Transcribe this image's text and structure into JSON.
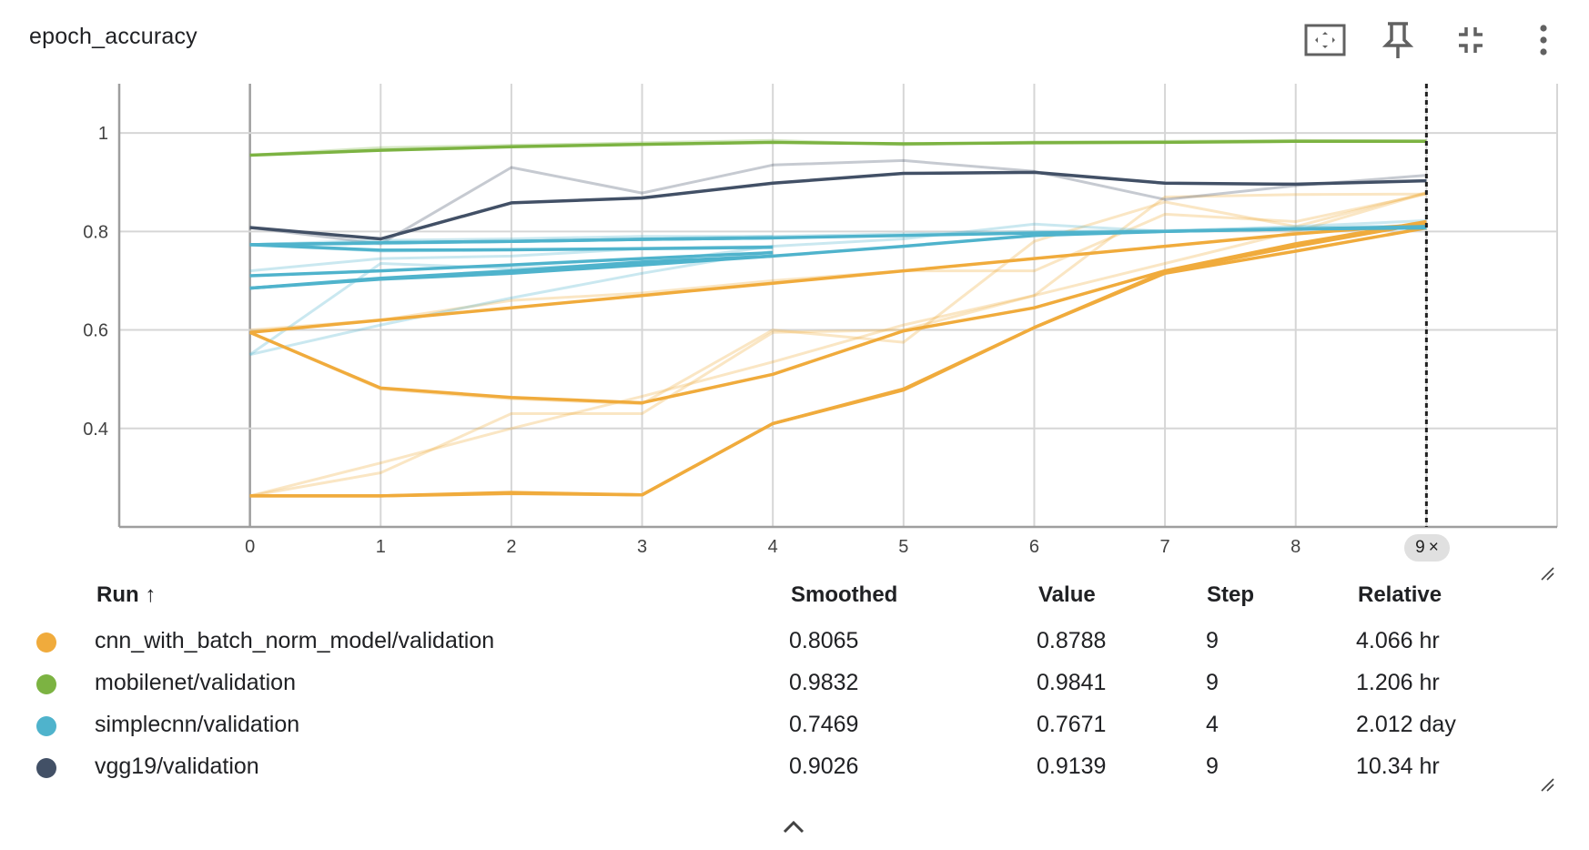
{
  "title": "epoch_accuracy",
  "toolbar": {
    "fit_icon": "fit-domain-icon",
    "pin_icon": "pin-icon",
    "collapse_icon": "collapse-icon",
    "menu_icon": "more-vert-icon"
  },
  "step_chip": {
    "value": "9",
    "close": "×"
  },
  "table": {
    "headers": {
      "run": "Run ↑",
      "smoothed": "Smoothed",
      "value": "Value",
      "step": "Step",
      "relative": "Relative"
    },
    "rows": [
      {
        "run": "cnn_with_batch_norm_model/validation",
        "smoothed": "0.8065",
        "value": "0.8788",
        "step": "9",
        "relative": "4.066 hr",
        "color": "#f0ab3c"
      },
      {
        "run": "mobilenet/validation",
        "smoothed": "0.9832",
        "value": "0.9841",
        "step": "9",
        "relative": "1.206 hr",
        "color": "#7cb342"
      },
      {
        "run": "simplecnn/validation",
        "smoothed": "0.7469",
        "value": "0.7671",
        "step": "4",
        "relative": "2.012 day",
        "color": "#4fb3cc"
      },
      {
        "run": "vgg19/validation",
        "smoothed": "0.9026",
        "value": "0.9139",
        "step": "9",
        "relative": "10.34 hr",
        "color": "#425066"
      }
    ]
  },
  "chart_data": {
    "type": "line",
    "title": "epoch_accuracy",
    "xlabel": "",
    "ylabel": "",
    "x_ticks": [
      0,
      1,
      2,
      3,
      4,
      5,
      6,
      7,
      8,
      9
    ],
    "y_ticks": [
      0.4,
      0.6,
      0.8,
      1
    ],
    "xlim": [
      -1,
      10
    ],
    "ylim": [
      0.2,
      1.1
    ],
    "grid": true,
    "selected_step": 9,
    "series": [
      {
        "name": "cnn_with_batch_norm_model/validation",
        "color": "#f0ab3c",
        "x": [
          0,
          1,
          2,
          3,
          4,
          5,
          6,
          7,
          8,
          9
        ],
        "smoothed": [
          0.595,
          0.62,
          0.645,
          0.67,
          0.695,
          0.72,
          0.745,
          0.77,
          0.795,
          0.815
        ],
        "raw": [
          0.6,
          0.62,
          0.66,
          0.675,
          0.7,
          0.72,
          0.72,
          0.835,
          0.82,
          0.876
        ]
      },
      {
        "name": "cnn_with_batch_norm_model/validation",
        "color": "#f0ab3c",
        "x": [
          0,
          1,
          2,
          3,
          4,
          5,
          6,
          7,
          8,
          9
        ],
        "smoothed": [
          0.595,
          0.482,
          0.463,
          0.452,
          0.51,
          0.598,
          0.645,
          0.72,
          0.775,
          0.82
        ],
        "raw": [
          0.595,
          0.48,
          0.46,
          0.45,
          0.6,
          0.575,
          0.78,
          0.86,
          0.81,
          0.879
        ]
      },
      {
        "name": "cnn_with_batch_norm_model/validation",
        "color": "#f0ab3c",
        "x": [
          0,
          1,
          2,
          3,
          4,
          5,
          6,
          7,
          8,
          9
        ],
        "smoothed": [
          0.263,
          0.263,
          0.268,
          0.265,
          0.41,
          0.478,
          0.605,
          0.715,
          0.76,
          0.807
        ],
        "raw": [
          0.263,
          0.31,
          0.43,
          0.43,
          0.595,
          0.6,
          0.67,
          0.87,
          0.875,
          0.876
        ]
      },
      {
        "name": "cnn_with_batch_norm_model/validation",
        "color": "#f0ab3c",
        "x": [
          0,
          1,
          2,
          3,
          4,
          5,
          6,
          7,
          8,
          9
        ],
        "smoothed": [
          0.263,
          0.263,
          0.27,
          0.265,
          0.41,
          0.48,
          0.605,
          0.718,
          0.77,
          0.817
        ],
        "raw": [
          0.263,
          0.33,
          0.4,
          0.465,
          0.535,
          0.61,
          0.67,
          0.735,
          0.8,
          0.878
        ]
      },
      {
        "name": "mobilenet/validation",
        "color": "#7cb342",
        "x": [
          0,
          1,
          2,
          3,
          4,
          5,
          6,
          7,
          8,
          9
        ],
        "smoothed": [
          0.955,
          0.965,
          0.972,
          0.977,
          0.981,
          0.978,
          0.98,
          0.981,
          0.983,
          0.983
        ],
        "raw": [
          0.955,
          0.97,
          0.975,
          0.98,
          0.985,
          0.976,
          0.982,
          0.983,
          0.985,
          0.984
        ]
      },
      {
        "name": "vgg19/validation",
        "color": "#425066",
        "x": [
          0,
          1,
          2,
          3,
          4,
          5,
          6,
          7,
          8,
          9
        ],
        "smoothed": [
          0.808,
          0.785,
          0.858,
          0.868,
          0.898,
          0.918,
          0.92,
          0.898,
          0.896,
          0.903
        ],
        "raw": [
          0.808,
          0.775,
          0.93,
          0.878,
          0.935,
          0.944,
          0.922,
          0.865,
          0.893,
          0.914
        ]
      },
      {
        "name": "simplecnn/validation",
        "color": "#4fb3cc",
        "x": [
          0,
          1,
          2,
          3,
          4
        ],
        "smoothed": [
          0.773,
          0.777,
          0.78,
          0.784,
          0.787
        ],
        "raw": [
          0.773,
          0.782,
          0.785,
          0.79,
          0.79
        ]
      },
      {
        "name": "simplecnn/validation",
        "color": "#4fb3cc",
        "x": [
          0,
          1,
          2,
          3,
          4
        ],
        "smoothed": [
          0.773,
          0.762,
          0.763,
          0.765,
          0.768
        ],
        "raw": [
          0.773,
          0.76,
          0.762,
          0.766,
          0.77
        ]
      },
      {
        "name": "simplecnn/validation",
        "color": "#4fb3cc",
        "x": [
          0,
          1,
          2,
          3,
          4
        ],
        "smoothed": [
          0.71,
          0.72,
          0.732,
          0.745,
          0.757
        ],
        "raw": [
          0.72,
          0.745,
          0.75,
          0.765,
          0.767
        ]
      },
      {
        "name": "simplecnn/validation",
        "color": "#4fb3cc",
        "x": [
          0,
          1,
          2,
          3,
          4
        ],
        "smoothed": [
          0.685,
          0.705,
          0.72,
          0.738,
          0.75
        ],
        "raw": [
          0.55,
          0.61,
          0.665,
          0.715,
          0.76
        ]
      },
      {
        "name": "simplecnn/validation",
        "color": "#4fb3cc",
        "x": [
          0,
          1,
          2,
          3,
          4,
          5,
          6,
          7,
          8,
          9
        ],
        "smoothed": [
          0.685,
          0.703,
          0.715,
          0.732,
          0.75,
          0.77,
          0.792,
          0.8,
          0.805,
          0.807
        ],
        "raw": [
          0.55,
          0.735,
          0.725,
          0.735,
          0.77,
          0.785,
          0.815,
          0.8,
          0.81,
          0.822
        ]
      },
      {
        "name": "simplecnn/validation",
        "color": "#4fb3cc",
        "x": [
          0,
          1,
          2,
          3,
          4,
          5,
          6,
          7,
          8,
          9
        ],
        "smoothed": [
          0.773,
          0.777,
          0.78,
          0.784,
          0.787,
          0.792,
          0.797,
          0.8,
          0.805,
          0.81
        ],
        "raw": [
          0.773,
          0.775,
          0.78,
          0.785,
          0.79,
          0.795,
          0.8,
          0.802,
          0.808,
          0.812
        ]
      }
    ]
  }
}
